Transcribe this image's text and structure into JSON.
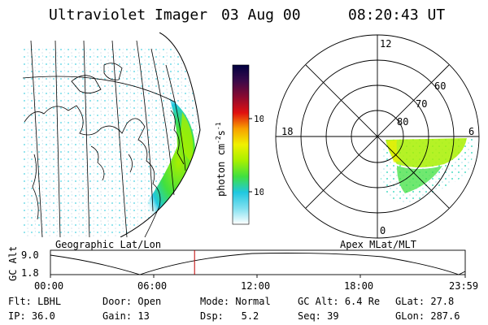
{
  "header": {
    "title": "Ultraviolet Imager",
    "date": "03 Aug 00",
    "time": "08:20:43 UT"
  },
  "colorbar": {
    "label_text": "photon cm",
    "label_sup1": "-2",
    "label_mid": "s",
    "label_sup2": "-1",
    "ticks": [
      "100",
      "10"
    ],
    "colors": [
      "#000040",
      "#2a0a4a",
      "#5a0a50",
      "#8a0a30",
      "#c80a14",
      "#f05a00",
      "#f8a000",
      "#f0f000",
      "#a8f000",
      "#40e040",
      "#20d8a0",
      "#20c8e0",
      "#80e0f0",
      "#e0f0f8"
    ]
  },
  "panels": {
    "left_label": "Geographic Lat/Lon",
    "right_label": "Apex MLat/MLT",
    "polar_mlt": {
      "top": "12",
      "left": "18",
      "right": "6",
      "bottom": "0"
    },
    "polar_lat": [
      "60",
      "70",
      "80"
    ]
  },
  "timeline": {
    "ylabel": "GC Alt",
    "yticks": [
      "9.0",
      "1.8"
    ],
    "xticks": [
      "00:00",
      "06:00",
      "12:00",
      "18:00",
      "23:59"
    ],
    "marker_time": "08:20",
    "marker_color": "#c00000"
  },
  "info": {
    "row1": [
      {
        "label": "Flt:",
        "value": "LBHL"
      },
      {
        "label": "Door:",
        "value": "Open"
      },
      {
        "label": "Mode:",
        "value": "Normal"
      },
      {
        "label": "GC Alt:",
        "value": "6.4 Re"
      },
      {
        "label": "GLat:",
        "value": "27.8"
      }
    ],
    "row2": [
      {
        "label": "IP:",
        "value": "36.0"
      },
      {
        "label": "Gain:",
        "value": "13"
      },
      {
        "label": "Dsp:",
        "value": "5.2"
      },
      {
        "label": "Seq:",
        "value": "39"
      },
      {
        "label": "GLon:",
        "value": "287.6"
      }
    ]
  }
}
